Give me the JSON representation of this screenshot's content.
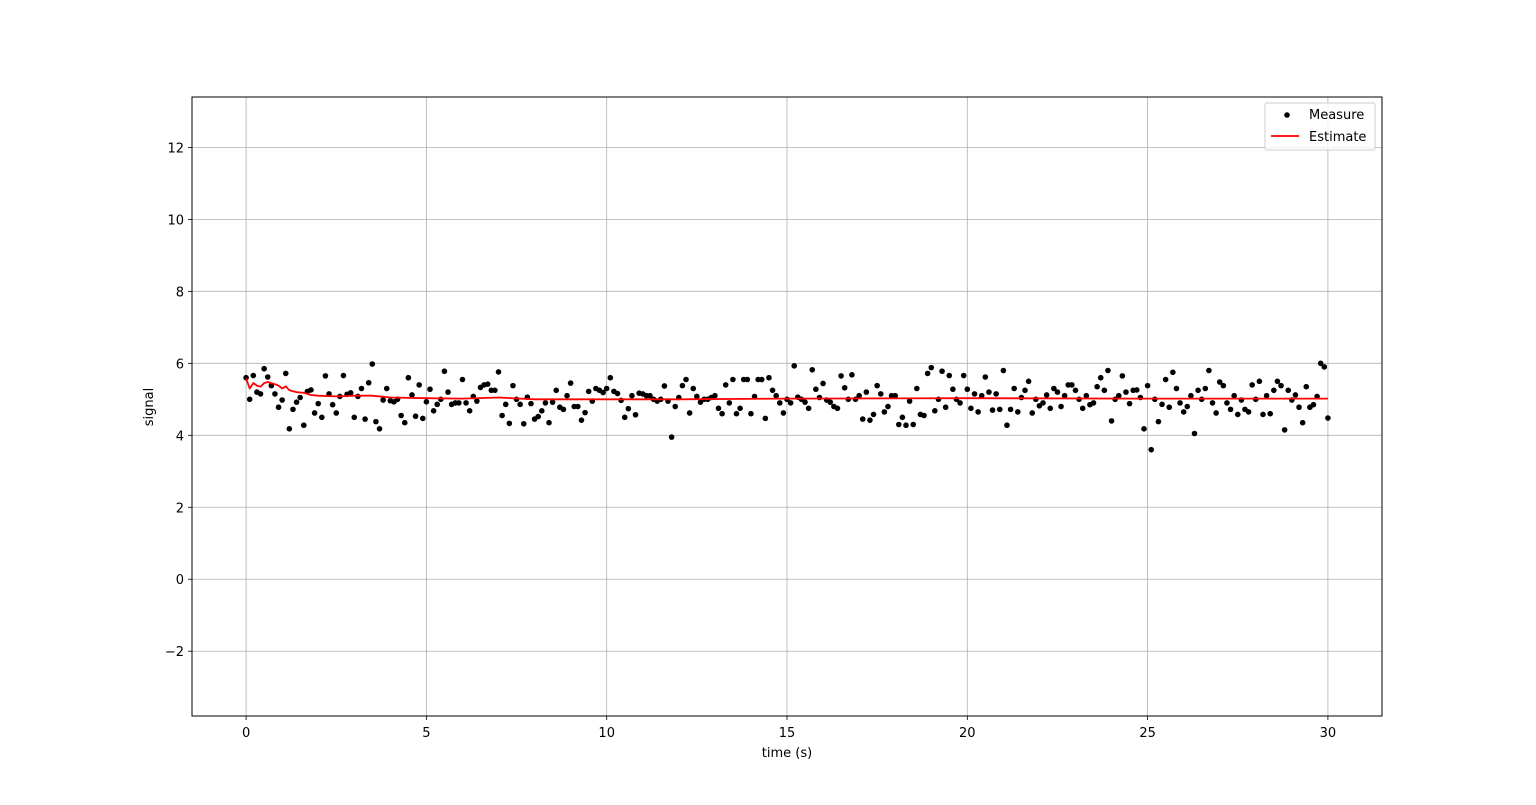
{
  "chart_data": {
    "type": "scatter",
    "title": "",
    "xlabel": "time (s)",
    "ylabel": "signal",
    "xlim": [
      -1.5,
      31.5
    ],
    "ylim": [
      -3.8,
      13.4
    ],
    "xticks": [
      0,
      5,
      10,
      15,
      20,
      25,
      30
    ],
    "yticks": [
      -2,
      0,
      2,
      4,
      6,
      8,
      10,
      12
    ],
    "xtick_labels": [
      "0",
      "5",
      "10",
      "15",
      "20",
      "25",
      "30"
    ],
    "ytick_labels": [
      "−2",
      "0",
      "2",
      "4",
      "6",
      "8",
      "10",
      "12"
    ],
    "grid": true,
    "legend_position": "top-right",
    "series": [
      {
        "name": "Measure",
        "kind": "markers",
        "color": "#000000",
        "x": [
          0.0,
          0.1,
          0.2,
          0.3,
          0.4,
          0.5,
          0.6,
          0.7,
          0.8,
          0.9,
          1.0,
          1.1,
          1.2,
          1.3,
          1.4,
          1.5,
          1.6,
          1.7,
          1.8,
          1.9,
          2.0,
          2.1,
          2.2,
          2.3,
          2.4,
          2.5,
          2.6,
          2.7,
          2.8,
          2.9,
          3.0,
          3.1,
          3.2,
          3.3,
          3.4,
          3.5,
          3.6,
          3.7,
          3.8,
          3.9,
          4.0,
          4.1,
          4.2,
          4.3,
          4.4,
          4.5,
          4.6,
          4.7,
          4.8,
          4.9,
          5.0,
          5.1,
          5.2,
          5.3,
          5.4,
          5.5,
          5.6,
          5.7,
          5.8,
          5.9,
          6.0,
          6.1,
          6.2,
          6.3,
          6.4,
          6.5,
          6.6,
          6.7,
          6.8,
          6.9,
          7.0,
          7.1,
          7.2,
          7.3,
          7.4,
          7.5,
          7.6,
          7.7,
          7.8,
          7.9,
          8.0,
          8.1,
          8.2,
          8.3,
          8.4,
          8.5,
          8.6,
          8.7,
          8.8,
          8.9,
          9.0,
          9.1,
          9.2,
          9.3,
          9.4,
          9.5,
          9.6,
          9.7,
          9.8,
          9.9,
          10.0,
          10.1,
          10.2,
          10.3,
          10.4,
          10.5,
          10.6,
          10.7,
          10.8,
          10.9,
          11.0,
          11.1,
          11.2,
          11.3,
          11.4,
          11.5,
          11.6,
          11.7,
          11.8,
          11.9,
          12.0,
          12.1,
          12.2,
          12.3,
          12.4,
          12.5,
          12.6,
          12.7,
          12.8,
          12.9,
          13.0,
          13.1,
          13.2,
          13.3,
          13.4,
          13.5,
          13.6,
          13.7,
          13.8,
          13.9,
          14.0,
          14.1,
          14.2,
          14.3,
          14.4,
          14.5,
          14.6,
          14.7,
          14.8,
          14.9,
          15.0,
          15.1,
          15.2,
          15.3,
          15.4,
          15.5,
          15.6,
          15.7,
          15.8,
          15.9,
          16.0,
          16.1,
          16.2,
          16.3,
          16.4,
          16.5,
          16.6,
          16.7,
          16.8,
          16.9,
          17.0,
          17.1,
          17.2,
          17.3,
          17.4,
          17.5,
          17.6,
          17.7,
          17.8,
          17.9,
          18.0,
          18.1,
          18.2,
          18.3,
          18.4,
          18.5,
          18.6,
          18.7,
          18.8,
          18.9,
          19.0,
          19.1,
          19.2,
          19.3,
          19.4,
          19.5,
          19.6,
          19.7,
          19.8,
          19.9,
          20.0,
          20.1,
          20.2,
          20.3,
          20.4,
          20.5,
          20.6,
          20.7,
          20.8,
          20.9,
          21.0,
          21.1,
          21.2,
          21.3,
          21.4,
          21.5,
          21.6,
          21.7,
          21.8,
          21.9,
          22.0,
          22.1,
          22.2,
          22.3,
          22.4,
          22.5,
          22.6,
          22.7,
          22.8,
          22.9,
          23.0,
          23.1,
          23.2,
          23.3,
          23.4,
          23.5,
          23.6,
          23.7,
          23.8,
          23.9,
          24.0,
          24.1,
          24.2,
          24.3,
          24.4,
          24.5,
          24.6,
          24.7,
          24.8,
          24.9,
          25.0,
          25.1,
          25.2,
          25.3,
          25.4,
          25.5,
          25.6,
          25.7,
          25.8,
          25.9,
          26.0,
          26.1,
          26.2,
          26.3,
          26.4,
          26.5,
          26.6,
          26.7,
          26.8,
          26.9,
          27.0,
          27.1,
          27.2,
          27.3,
          27.4,
          27.5,
          27.6,
          27.7,
          27.8,
          27.9,
          28.0,
          28.1,
          28.2,
          28.3,
          28.4,
          28.5,
          28.6,
          28.7,
          28.8,
          28.9,
          29.0,
          29.1,
          29.2,
          29.3,
          29.4,
          29.5,
          29.6,
          29.7,
          29.8,
          29.9,
          30.0
        ],
        "y": [
          5.6,
          5.0,
          5.66,
          5.2,
          5.15,
          5.85,
          5.62,
          5.38,
          5.15,
          4.78,
          4.98,
          5.72,
          4.18,
          4.72,
          4.92,
          5.05,
          4.28,
          5.22,
          5.26,
          4.62,
          4.88,
          4.5,
          5.65,
          5.15,
          4.85,
          4.62,
          5.08,
          5.66,
          5.14,
          5.18,
          4.5,
          5.08,
          5.3,
          4.45,
          5.46,
          5.98,
          4.38,
          4.18,
          4.98,
          5.3,
          4.96,
          4.93,
          5.0,
          4.55,
          4.35,
          5.6,
          5.12,
          4.53,
          5.4,
          4.47,
          4.93,
          5.28,
          4.68,
          4.86,
          5.0,
          5.78,
          5.2,
          4.86,
          4.9,
          4.9,
          5.55,
          4.9,
          4.68,
          5.08,
          4.95,
          5.33,
          5.4,
          5.42,
          5.25,
          5.25,
          5.76,
          4.55,
          4.86,
          4.33,
          5.38,
          5.0,
          4.86,
          4.32,
          5.06,
          4.88,
          4.45,
          4.52,
          4.68,
          4.9,
          4.35,
          4.92,
          5.25,
          4.78,
          4.72,
          5.1,
          5.45,
          4.8,
          4.8,
          4.42,
          4.63,
          5.22,
          4.95,
          5.3,
          5.25,
          5.19,
          5.3,
          5.6,
          5.22,
          5.16,
          4.97,
          4.5,
          4.74,
          5.1,
          4.57,
          5.17,
          5.15,
          5.1,
          5.1,
          5.0,
          4.95,
          5.0,
          5.37,
          4.95,
          3.95,
          4.8,
          5.05,
          5.38,
          5.55,
          4.62,
          5.3,
          5.08,
          4.92,
          5.0,
          5.0,
          5.05,
          5.1,
          4.75,
          4.6,
          5.4,
          4.9,
          5.55,
          4.6,
          4.75,
          5.55,
          5.55,
          4.6,
          5.08,
          5.55,
          5.55,
          4.47,
          5.6,
          5.25,
          5.1,
          4.9,
          4.62,
          5.0,
          4.9,
          5.93,
          5.06,
          5.0,
          4.92,
          4.75,
          5.82,
          5.28,
          5.05,
          5.44,
          4.98,
          4.92,
          4.8,
          4.75,
          5.65,
          5.32,
          5.0,
          5.68,
          5.0,
          5.1,
          4.45,
          5.2,
          4.42,
          4.58,
          5.38,
          5.15,
          4.65,
          4.8,
          5.1,
          5.1,
          4.3,
          4.5,
          4.28,
          4.95,
          4.3,
          5.3,
          4.58,
          4.55,
          5.72,
          5.88,
          4.68,
          5.0,
          5.78,
          4.78,
          5.66,
          5.28,
          5.0,
          4.9,
          5.66,
          5.28,
          4.75,
          5.15,
          4.65,
          5.1,
          5.62,
          5.2,
          4.7,
          5.15,
          4.72,
          5.8,
          4.28,
          4.72,
          5.3,
          4.65,
          5.05,
          5.25,
          5.5,
          4.62,
          5.0,
          4.82,
          4.9,
          5.12,
          4.75,
          5.3,
          5.2,
          4.8,
          5.1,
          5.4,
          5.4,
          5.25,
          5.0,
          4.75,
          5.1,
          4.85,
          4.9,
          5.35,
          5.6,
          5.25,
          5.8,
          4.4,
          5.0,
          5.1,
          5.65,
          5.2,
          4.88,
          5.25,
          5.26,
          5.05,
          4.18,
          5.38,
          3.6,
          5.0,
          4.38,
          4.86,
          5.55,
          4.78,
          5.75,
          5.3,
          4.9,
          4.65,
          4.8,
          5.1,
          4.05,
          5.25,
          5.0,
          5.3,
          5.8,
          4.9,
          4.62,
          5.48,
          5.38,
          4.9,
          4.72,
          5.1,
          4.58,
          4.98,
          4.72,
          4.65,
          5.4,
          5.0,
          5.5,
          4.58,
          5.1,
          4.6,
          5.25,
          5.5,
          5.38,
          4.15,
          5.25,
          4.98,
          5.12,
          4.78,
          4.35,
          5.35,
          4.78,
          4.85,
          5.08,
          6.0,
          5.9,
          4.48
        ]
      },
      {
        "name": "Estimate",
        "kind": "line",
        "color": "#ff0000",
        "x": [
          0.0,
          0.1,
          0.2,
          0.3,
          0.4,
          0.5,
          0.6,
          0.7,
          0.8,
          0.9,
          1.0,
          1.1,
          1.2,
          1.4,
          1.6,
          1.8,
          2.0,
          2.5,
          3.0,
          3.5,
          4.0,
          5.0,
          6.0,
          7.0,
          8.0,
          10.0,
          12.0,
          15.0,
          20.0,
          25.0,
          30.0
        ],
        "y": [
          5.58,
          5.3,
          5.45,
          5.38,
          5.35,
          5.45,
          5.48,
          5.45,
          5.42,
          5.38,
          5.3,
          5.36,
          5.25,
          5.2,
          5.18,
          5.12,
          5.1,
          5.08,
          5.1,
          5.1,
          5.05,
          5.03,
          5.02,
          5.05,
          5.0,
          5.0,
          5.0,
          5.02,
          5.03,
          5.02,
          5.02
        ]
      }
    ]
  }
}
